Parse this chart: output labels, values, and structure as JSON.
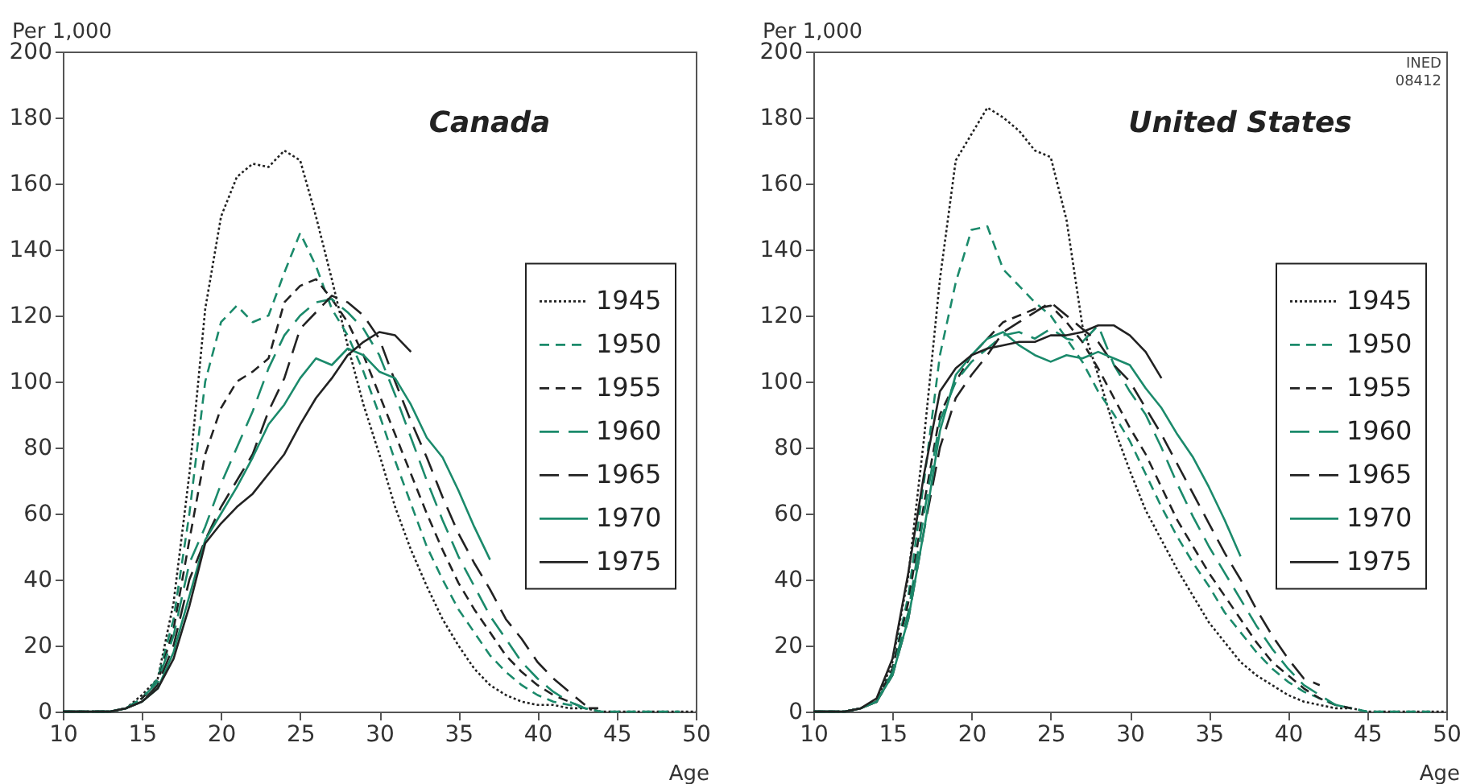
{
  "chart_data": [
    {
      "type": "line",
      "title": "Canada",
      "xlabel": "Age",
      "ylabel": "Per 1,000",
      "legend": "right",
      "x": [
        10,
        11,
        12,
        13,
        14,
        15,
        16,
        17,
        18,
        19,
        20,
        21,
        22,
        23,
        24,
        25,
        26,
        27,
        28,
        29,
        30,
        31,
        32,
        33,
        34,
        35,
        36,
        37,
        38,
        39,
        40,
        41,
        42,
        43,
        44,
        45,
        46,
        47,
        48,
        49,
        50
      ],
      "xlim": [
        10,
        50
      ],
      "ylim": [
        0,
        200
      ],
      "xticks": [
        10,
        15,
        20,
        25,
        30,
        35,
        40,
        45,
        50
      ],
      "yticks": [
        0,
        20,
        40,
        60,
        80,
        100,
        120,
        140,
        160,
        180,
        200
      ],
      "series": [
        {
          "name": "1945",
          "color": "#222222",
          "line_style": "dotted",
          "values": [
            0,
            0,
            0,
            0,
            1,
            5,
            10,
            33,
            72,
            122,
            150,
            162,
            166,
            165,
            170,
            167,
            150,
            131,
            111,
            93,
            78,
            62,
            49,
            38,
            28,
            20,
            13,
            8,
            5,
            3,
            2,
            2,
            1,
            1,
            0,
            0,
            0,
            0,
            0,
            0,
            0
          ]
        },
        {
          "name": "1950",
          "color": "#1b8a6b",
          "line_style": "dashed",
          "values": [
            0,
            0,
            0,
            0,
            1,
            4,
            10,
            28,
            60,
            100,
            118,
            123,
            118,
            120,
            133,
            145,
            135,
            122,
            114,
            103,
            90,
            76,
            63,
            50,
            40,
            31,
            24,
            17,
            12,
            8,
            5,
            3,
            2,
            1,
            0,
            0,
            0,
            0,
            0,
            0,
            null
          ]
        },
        {
          "name": "1955",
          "color": "#222222",
          "line_style": "dashed",
          "values": [
            0,
            0,
            0,
            0,
            1,
            4,
            9,
            25,
            52,
            78,
            92,
            100,
            103,
            107,
            124,
            129,
            131,
            125,
            118,
            108,
            96,
            84,
            72,
            60,
            49,
            39,
            31,
            24,
            17,
            12,
            8,
            5,
            3,
            1,
            1,
            null,
            null,
            null,
            null,
            null,
            null
          ]
        },
        {
          "name": "1960",
          "color": "#1b8a6b",
          "line_style": "dashed",
          "values": [
            0,
            0,
            0,
            0,
            1,
            4,
            9,
            23,
            45,
            56,
            69,
            80,
            91,
            104,
            114,
            120,
            124,
            125,
            121,
            116,
            108,
            96,
            83,
            70,
            58,
            47,
            38,
            29,
            22,
            15,
            10,
            6,
            3,
            1,
            null,
            null,
            null,
            null,
            null,
            null,
            null
          ]
        },
        {
          "name": "1965",
          "color": "#222222",
          "line_style": "dashed",
          "values": [
            0,
            0,
            0,
            0,
            1,
            3,
            8,
            20,
            40,
            52,
            62,
            70,
            78,
            91,
            101,
            116,
            121,
            126,
            124,
            120,
            113,
            100,
            88,
            77,
            65,
            54,
            45,
            37,
            28,
            22,
            15,
            10,
            6,
            2,
            null,
            null,
            null,
            null,
            null,
            null,
            null
          ]
        },
        {
          "name": "1970",
          "color": "#1b8a6b",
          "line_style": "solid",
          "values": [
            0,
            0,
            0,
            0,
            1,
            3,
            7,
            18,
            35,
            52,
            60,
            68,
            77,
            87,
            93,
            101,
            107,
            105,
            110,
            108,
            103,
            101,
            93,
            83,
            77,
            67,
            56,
            46,
            null,
            null,
            null,
            null,
            null,
            null,
            null,
            null,
            null,
            null,
            null,
            null,
            null
          ]
        },
        {
          "name": "1975",
          "color": "#222222",
          "line_style": "solid",
          "values": [
            0,
            0,
            0,
            0,
            1,
            3,
            7,
            16,
            32,
            51,
            57,
            62,
            66,
            72,
            78,
            87,
            95,
            101,
            108,
            112,
            115,
            114,
            109,
            null,
            null,
            null,
            null,
            null,
            null,
            null,
            null,
            null,
            null,
            null,
            null,
            null,
            null,
            null,
            null,
            null,
            null
          ]
        }
      ]
    },
    {
      "type": "line",
      "title": "United States",
      "xlabel": "Age",
      "ylabel": "Per 1,000",
      "legend": "right",
      "x": [
        10,
        11,
        12,
        13,
        14,
        15,
        16,
        17,
        18,
        19,
        20,
        21,
        22,
        23,
        24,
        25,
        26,
        27,
        28,
        29,
        30,
        31,
        32,
        33,
        34,
        35,
        36,
        37,
        38,
        39,
        40,
        41,
        42,
        43,
        44,
        45,
        46,
        47,
        48,
        49,
        50
      ],
      "xlim": [
        10,
        50
      ],
      "ylim": [
        0,
        200
      ],
      "xticks": [
        10,
        15,
        20,
        25,
        30,
        35,
        40,
        45,
        50
      ],
      "yticks": [
        0,
        20,
        40,
        60,
        80,
        100,
        120,
        140,
        160,
        180,
        200
      ],
      "annotations": [
        "INED 08412"
      ],
      "series": [
        {
          "name": "1945",
          "color": "#222222",
          "line_style": "dotted",
          "values": [
            0,
            0,
            0,
            1,
            3,
            15,
            41,
            83,
            131,
            167,
            175,
            183,
            180,
            176,
            170,
            168,
            149,
            117,
            102,
            86,
            73,
            61,
            52,
            43,
            35,
            27,
            21,
            15,
            11,
            8,
            5,
            3,
            2,
            1,
            1,
            0,
            0,
            0,
            0,
            0,
            0
          ]
        },
        {
          "name": "1950",
          "color": "#1b8a6b",
          "line_style": "dashed",
          "values": [
            0,
            0,
            0,
            1,
            3,
            13,
            35,
            70,
            108,
            130,
            146,
            147,
            134,
            129,
            124,
            120,
            113,
            106,
            97,
            90,
            82,
            72,
            62,
            53,
            45,
            38,
            30,
            24,
            18,
            13,
            9,
            6,
            4,
            2,
            1,
            0,
            0,
            0,
            0,
            0,
            null
          ]
        },
        {
          "name": "1955",
          "color": "#222222",
          "line_style": "dashed",
          "values": [
            0,
            0,
            0,
            1,
            3,
            13,
            33,
            63,
            90,
            100,
            108,
            113,
            118,
            120,
            122,
            123,
            118,
            112,
            104,
            95,
            86,
            78,
            68,
            58,
            50,
            42,
            35,
            28,
            21,
            15,
            11,
            7,
            4,
            2,
            1,
            null,
            null,
            null,
            null,
            null,
            null
          ]
        },
        {
          "name": "1960",
          "color": "#1b8a6b",
          "line_style": "dashed",
          "values": [
            0,
            0,
            0,
            1,
            3,
            12,
            30,
            60,
            88,
            100,
            106,
            110,
            114,
            115,
            113,
            116,
            113,
            112,
            117,
            105,
            97,
            90,
            80,
            69,
            59,
            50,
            42,
            34,
            26,
            19,
            13,
            8,
            5,
            2,
            1,
            null,
            null,
            null,
            null,
            null,
            null
          ]
        },
        {
          "name": "1965",
          "color": "#222222",
          "line_style": "dashed",
          "values": [
            0,
            0,
            0,
            1,
            3,
            11,
            28,
            55,
            80,
            95,
            102,
            108,
            115,
            118,
            121,
            124,
            120,
            116,
            112,
            105,
            100,
            92,
            84,
            75,
            66,
            57,
            48,
            40,
            31,
            23,
            16,
            10,
            8,
            null,
            null,
            null,
            null,
            null,
            null,
            null,
            null
          ]
        },
        {
          "name": "1970",
          "color": "#1b8a6b",
          "line_style": "solid",
          "values": [
            0,
            0,
            0,
            1,
            3,
            11,
            28,
            55,
            85,
            102,
            108,
            113,
            115,
            111,
            108,
            106,
            108,
            107,
            109,
            107,
            105,
            98,
            92,
            84,
            77,
            68,
            58,
            47,
            null,
            null,
            null,
            null,
            null,
            null,
            null,
            null,
            null,
            null,
            null,
            null,
            null
          ]
        },
        {
          "name": "1975",
          "color": "#222222",
          "line_style": "solid",
          "values": [
            0,
            0,
            0,
            1,
            4,
            16,
            42,
            72,
            97,
            104,
            108,
            110,
            111,
            112,
            112,
            114,
            114,
            115,
            117,
            117,
            114,
            109,
            101,
            null,
            null,
            null,
            null,
            null,
            null,
            null,
            null,
            null,
            null,
            null,
            null,
            null,
            null,
            null,
            null,
            null,
            null
          ]
        }
      ]
    }
  ]
}
